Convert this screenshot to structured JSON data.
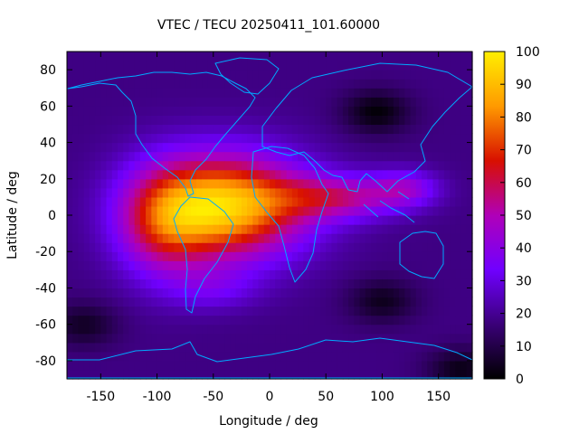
{
  "chart_data": {
    "type": "heatmap",
    "title": "VTEC / TECU 20250411_101.60000",
    "xlabel": "Longitude / deg",
    "ylabel": "Latitude / deg",
    "xlim": [
      -180,
      180
    ],
    "ylim": [
      -90,
      90
    ],
    "x_ticks": [
      -150,
      -100,
      -50,
      0,
      50,
      100,
      150
    ],
    "y_ticks": [
      -80,
      -60,
      -40,
      -20,
      0,
      20,
      40,
      60,
      80
    ],
    "colorbar": {
      "min": 0,
      "max": 100,
      "ticks": [
        0,
        10,
        20,
        30,
        40,
        50,
        60,
        70,
        80,
        90,
        100
      ],
      "colormap": [
        "#000000",
        "#3a0078",
        "#7000ff",
        "#b000b8",
        "#d81000",
        "#ff9a00",
        "#ffef00"
      ]
    },
    "field_description": {
      "background_vtec": 18,
      "peak_vtec": 93,
      "peak_location": {
        "lon": -40,
        "lat": 5
      },
      "low_vtec_regions": [
        {
          "lon": 95,
          "lat": 57,
          "vtec": 5
        },
        {
          "lon": 100,
          "lat": -47,
          "vtec": 8
        },
        {
          "lon": -165,
          "lat": -60,
          "vtec": 9
        },
        {
          "lon": 170,
          "lat": -85,
          "vtec": 7
        }
      ]
    },
    "overlay": "coastlines",
    "grid": false
  }
}
